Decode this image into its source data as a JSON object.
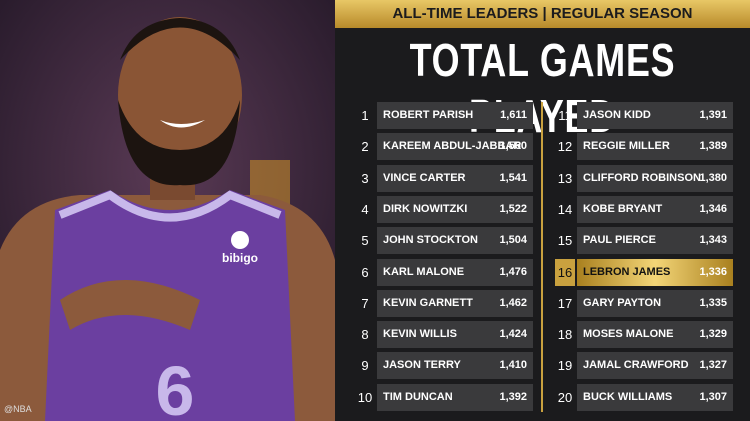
{
  "photo": {
    "watermark": "@NBA",
    "sponsor": "bibigo",
    "jersey_number": "6"
  },
  "header": {
    "banner": "ALL-TIME LEADERS | REGULAR SEASON",
    "title": "TOTAL GAMES PLAYED"
  },
  "rows": [
    {
      "rank": "1",
      "name": "ROBERT PARISH",
      "games": "1,611"
    },
    {
      "rank": "2",
      "name": "KAREEM ABDUL-JABBAR",
      "games": "1,560"
    },
    {
      "rank": "3",
      "name": "VINCE CARTER",
      "games": "1,541"
    },
    {
      "rank": "4",
      "name": "DIRK NOWITZKI",
      "games": "1,522"
    },
    {
      "rank": "5",
      "name": "JOHN STOCKTON",
      "games": "1,504"
    },
    {
      "rank": "6",
      "name": "KARL MALONE",
      "games": "1,476"
    },
    {
      "rank": "7",
      "name": "KEVIN GARNETT",
      "games": "1,462"
    },
    {
      "rank": "8",
      "name": "KEVIN WILLIS",
      "games": "1,424"
    },
    {
      "rank": "9",
      "name": "JASON TERRY",
      "games": "1,410"
    },
    {
      "rank": "10",
      "name": "TIM DUNCAN",
      "games": "1,392"
    },
    {
      "rank": "11",
      "name": "JASON KIDD",
      "games": "1,391"
    },
    {
      "rank": "12",
      "name": "REGGIE MILLER",
      "games": "1,389"
    },
    {
      "rank": "13",
      "name": "CLIFFORD ROBINSON",
      "games": "1,380"
    },
    {
      "rank": "14",
      "name": "KOBE BRYANT",
      "games": "1,346"
    },
    {
      "rank": "15",
      "name": "PAUL PIERCE",
      "games": "1,343"
    },
    {
      "rank": "16",
      "name": "LEBRON JAMES",
      "games": "1,336",
      "highlight": true
    },
    {
      "rank": "17",
      "name": "GARY PAYTON",
      "games": "1,335"
    },
    {
      "rank": "18",
      "name": "MOSES MALONE",
      "games": "1,329"
    },
    {
      "rank": "19",
      "name": "JAMAL CRAWFORD",
      "games": "1,327"
    },
    {
      "rank": "20",
      "name": "BUCK WILLIAMS",
      "games": "1,307"
    }
  ]
}
